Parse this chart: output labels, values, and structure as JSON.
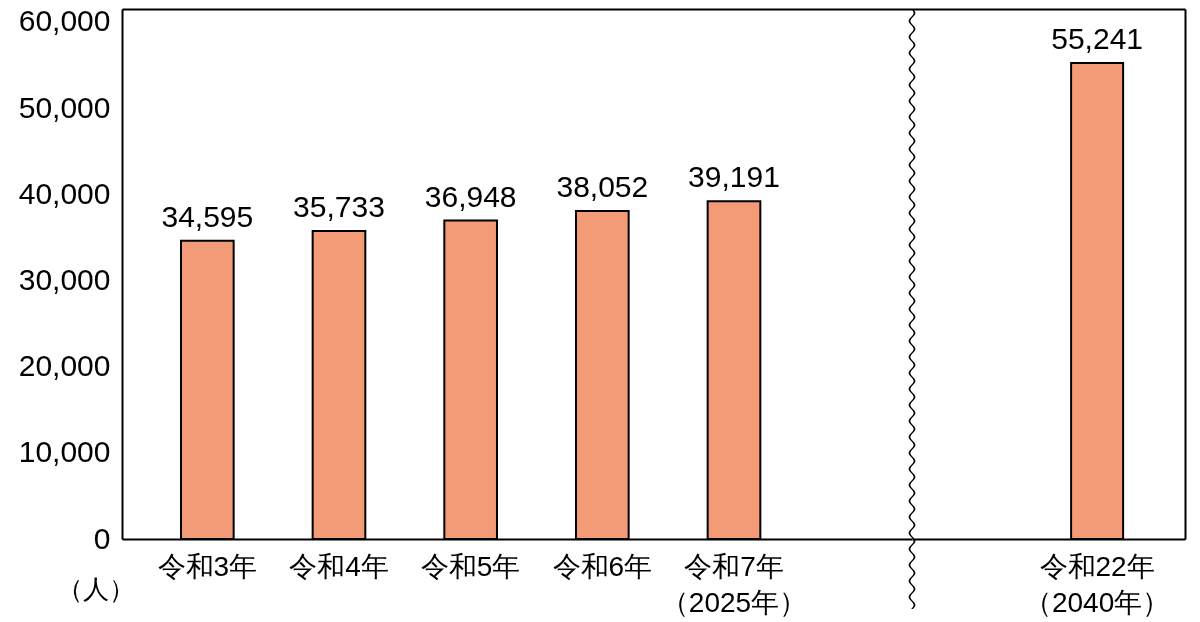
{
  "chart_data": [
    {
      "type": "bar",
      "categories": [
        "令和3年",
        "令和4年",
        "令和5年",
        "令和6年",
        "令和7年（2025年）"
      ],
      "values": [
        34595,
        35733,
        36948,
        38052,
        39191
      ],
      "value_labels": [
        "34,595",
        "35,733",
        "36,948",
        "38,052",
        "39,191"
      ],
      "color": "#f29b76",
      "ylabel": "（人）",
      "ylim": [
        0,
        61500
      ],
      "yticks": [
        {
          "value": 0,
          "label": "0"
        },
        {
          "value": 10000,
          "label": "10,000"
        },
        {
          "value": 20000,
          "label": "20,000"
        },
        {
          "value": 30000,
          "label": "30,000"
        },
        {
          "value": 40000,
          "label": "40,000"
        },
        {
          "value": 50000,
          "label": "50,000"
        },
        {
          "value": 60000,
          "label": "60,000"
        }
      ]
    },
    {
      "type": "bar",
      "categories": [
        "令和22年（2040年）"
      ],
      "values": [
        55241
      ],
      "value_labels": [
        "55,241"
      ],
      "color": "#f29b76",
      "ylim": [
        0,
        61500
      ],
      "tick_labels": "x"
    }
  ]
}
